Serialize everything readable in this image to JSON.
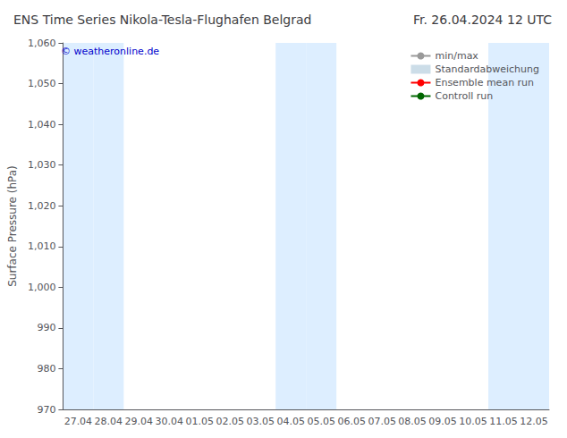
{
  "chart_data": {
    "type": "line",
    "title": "ENS Time Series Nikola-Tesla-Flughafen Belgrad",
    "subtitle": "Fr. 26.04.2024 12 UTC",
    "ylabel": "Surface Pressure (hPa)",
    "ylim": [
      970,
      1060
    ],
    "yticks": [
      970,
      980,
      990,
      1000,
      1010,
      1020,
      1030,
      1040,
      1050,
      1060
    ],
    "categories": [
      "27.04",
      "28.04",
      "29.04",
      "30.04",
      "01.05",
      "02.05",
      "03.05",
      "04.05",
      "05.05",
      "06.05",
      "07.05",
      "08.05",
      "09.05",
      "10.05",
      "11.05",
      "12.05"
    ],
    "series": [
      {
        "name": "min/max",
        "type": "line",
        "color": "#999999",
        "values": [
          null,
          null,
          null,
          null,
          null,
          null,
          null,
          null,
          null,
          null,
          null,
          null,
          null,
          null,
          null,
          null
        ]
      },
      {
        "name": "Standardabweichung",
        "type": "area",
        "color": "#ccdde8",
        "values": [
          null,
          null,
          null,
          null,
          null,
          null,
          null,
          null,
          null,
          null,
          null,
          null,
          null,
          null,
          null,
          null
        ]
      },
      {
        "name": "Ensemble mean run",
        "type": "line",
        "color": "#ff0000",
        "values": [
          null,
          null,
          null,
          null,
          null,
          null,
          null,
          null,
          null,
          null,
          null,
          null,
          null,
          null,
          null,
          null
        ]
      },
      {
        "name": "Controll run",
        "type": "line",
        "color": "#006600",
        "values": [
          null,
          null,
          null,
          null,
          null,
          null,
          null,
          null,
          null,
          null,
          null,
          null,
          null,
          null,
          null,
          null
        ]
      }
    ],
    "shade": {
      "categories": [
        "27.04",
        "28.04",
        "04.05",
        "05.05",
        "11.05",
        "12.05"
      ],
      "color": "#ddeeff"
    },
    "annotations": [
      {
        "text": "© weatheronline.de",
        "color": "#0000cc"
      }
    ],
    "grid": false,
    "legend": "top-right"
  }
}
